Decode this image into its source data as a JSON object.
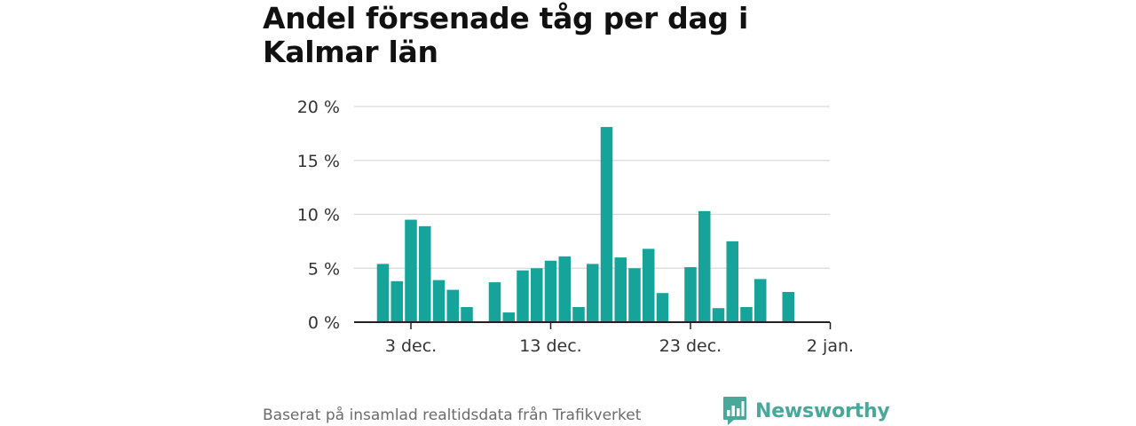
{
  "chart_data": {
    "type": "bar",
    "title": "Andel försenade tåg per dag i Kalmar län",
    "xlabel": "",
    "ylabel": "",
    "ylim": [
      0,
      20
    ],
    "yticks": [
      "0 %",
      "5 %",
      "10 %",
      "15 %",
      "20 %"
    ],
    "ytick_values": [
      0,
      5,
      10,
      15,
      20
    ],
    "xtick_labels": [
      {
        "label": "3 dec.",
        "day": 3
      },
      {
        "label": "13 dec.",
        "day": 13
      },
      {
        "label": "23 dec.",
        "day": 23
      },
      {
        "label": "2 jan.",
        "day": 33
      }
    ],
    "grid": true,
    "bar_color": "#15a39a",
    "categories": [
      "1 dec.",
      "2 dec.",
      "3 dec.",
      "4 dec.",
      "5 dec.",
      "6 dec.",
      "7 dec.",
      "8 dec.",
      "9 dec.",
      "10 dec.",
      "11 dec.",
      "12 dec.",
      "13 dec.",
      "14 dec.",
      "15 dec.",
      "16 dec.",
      "17 dec.",
      "18 dec.",
      "19 dec.",
      "20 dec.",
      "21 dec.",
      "22 dec.",
      "23 dec.",
      "24 dec.",
      "25 dec.",
      "26 dec.",
      "27 dec.",
      "28 dec.",
      "29 dec.",
      "30 dec.",
      "31 dec."
    ],
    "values": [
      5.4,
      3.8,
      9.5,
      8.9,
      3.9,
      3.0,
      1.4,
      null,
      3.7,
      0.9,
      4.8,
      5.0,
      5.7,
      6.1,
      1.4,
      5.4,
      18.1,
      6.0,
      5.0,
      6.8,
      2.7,
      null,
      5.1,
      10.3,
      1.3,
      7.5,
      1.4,
      4.0,
      null,
      2.8,
      null
    ]
  },
  "footer": {
    "source": "Baserat på insamlad realtidsdata från Trafikverket",
    "brand": "Newsworthy",
    "brand_color": "#4aa89a",
    "brand_icon": "bar-chart-speech-bubble-icon"
  }
}
